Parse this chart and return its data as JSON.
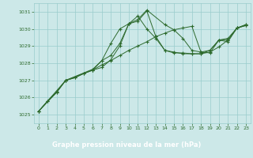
{
  "title": "Graphe pression niveau de la mer (hPa)",
  "bg_color": "#cce8e8",
  "bottom_bar_color": "#2d6a2d",
  "grid_color": "#99cccc",
  "line_color": "#2d6a2d",
  "marker_color": "#2d6a2d",
  "title_text_color": "#ffffff",
  "tick_color": "#2d6a2d",
  "ylim": [
    1024.5,
    1031.5
  ],
  "xlim": [
    -0.5,
    23.5
  ],
  "yticks": [
    1025,
    1026,
    1027,
    1028,
    1029,
    1030,
    1031
  ],
  "xticks": [
    0,
    1,
    2,
    3,
    4,
    5,
    6,
    7,
    8,
    9,
    10,
    11,
    12,
    13,
    14,
    15,
    16,
    17,
    18,
    19,
    20,
    21,
    22,
    23
  ],
  "series": [
    {
      "x": [
        0,
        1,
        2,
        3,
        4,
        5,
        6,
        7,
        8,
        9,
        10,
        11,
        12,
        13,
        14,
        15,
        16,
        17,
        18,
        19,
        20,
        21,
        22,
        23
      ],
      "y": [
        1025.2,
        1025.8,
        1026.3,
        1027.0,
        1027.15,
        1027.4,
        1027.6,
        1027.9,
        1028.15,
        1028.45,
        1028.75,
        1029.0,
        1029.25,
        1029.55,
        1029.75,
        1029.95,
        1030.05,
        1030.15,
        1028.65,
        1028.6,
        1029.35,
        1029.45,
        1030.05,
        1030.2
      ]
    },
    {
      "x": [
        0,
        2,
        3,
        6,
        7,
        8,
        9,
        10,
        11,
        12,
        13,
        14,
        15,
        16,
        17,
        18,
        19,
        20,
        21,
        22,
        23
      ],
      "y": [
        1025.2,
        1026.3,
        1027.0,
        1027.6,
        1027.75,
        1028.2,
        1029.0,
        1030.3,
        1030.45,
        1031.05,
        1029.55,
        1028.75,
        1028.6,
        1028.6,
        1028.55,
        1028.55,
        1028.75,
        1029.35,
        1029.35,
        1030.05,
        1030.25
      ]
    },
    {
      "x": [
        0,
        3,
        6,
        7,
        8,
        9,
        10,
        11,
        12,
        14,
        15,
        16,
        17,
        18,
        19,
        20,
        21,
        22,
        23
      ],
      "y": [
        1025.2,
        1027.0,
        1027.65,
        1028.15,
        1028.45,
        1029.15,
        1030.3,
        1030.55,
        1031.1,
        1030.25,
        1029.95,
        1029.45,
        1028.75,
        1028.65,
        1028.75,
        1029.35,
        1029.25,
        1030.05,
        1030.25
      ]
    },
    {
      "x": [
        0,
        1,
        2,
        3,
        4,
        5,
        6,
        7,
        8,
        9,
        10,
        11,
        12,
        13,
        14,
        15,
        16,
        17,
        18,
        19,
        20,
        21,
        22,
        23
      ],
      "y": [
        1025.2,
        1025.8,
        1026.35,
        1027.0,
        1027.15,
        1027.4,
        1027.6,
        1028.15,
        1029.15,
        1030.0,
        1030.3,
        1030.75,
        1030.0,
        1029.45,
        1028.75,
        1028.65,
        1028.55,
        1028.55,
        1028.55,
        1028.65,
        1028.95,
        1029.35,
        1030.05,
        1030.2
      ]
    }
  ]
}
